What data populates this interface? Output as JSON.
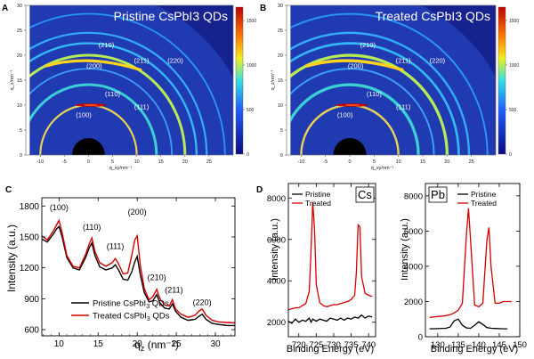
{
  "panels": {
    "A": "A",
    "B": "B",
    "C": "C",
    "D": "D"
  },
  "colors": {
    "pristine": "#000000",
    "treated": "#d40000",
    "map_bg": "#16238f"
  },
  "chart_data": [
    {
      "id": "A",
      "type": "heatmap",
      "title": "Pristine CsPbI3 QDs",
      "xlabel": "q_xy/nm⁻¹",
      "ylabel": "q_z/nm⁻¹",
      "xlim": [
        -13,
        30
      ],
      "ylim": [
        0,
        30
      ],
      "xticks": [
        "-10",
        "-5",
        "0",
        "5",
        "10",
        "15",
        "20",
        "25"
      ],
      "yticks": [
        "0",
        "5",
        "10",
        "15",
        "20",
        "25",
        "30"
      ],
      "rings": [
        {
          "label": "(100)",
          "q": 10.0
        },
        {
          "label": "(110)",
          "q": 14.1
        },
        {
          "label": "(111)",
          "q": 17.3
        },
        {
          "label": "(200)",
          "q": 20.0
        },
        {
          "label": "(210)",
          "q": 22.4
        },
        {
          "label": "(211)",
          "q": 24.5
        },
        {
          "label": "(220)",
          "q": 28.3
        }
      ],
      "colorbar": {
        "ticks": [
          "1500",
          "1000",
          "500",
          "0"
        ],
        "max": 1650
      }
    },
    {
      "id": "B",
      "type": "heatmap",
      "title": "Treated CsPbI3 QDs",
      "xlabel": "q_xy/nm⁻¹",
      "ylabel": "q_z/nm⁻¹",
      "xlim": [
        -13,
        30
      ],
      "ylim": [
        0,
        30
      ],
      "xticks": [
        "-10",
        "-5",
        "0",
        "5",
        "10",
        "15",
        "20",
        "25"
      ],
      "yticks": [
        "0",
        "5",
        "10",
        "15",
        "20",
        "25",
        "30"
      ],
      "rings": [
        {
          "label": "(100)",
          "q": 10.0
        },
        {
          "label": "(110)",
          "q": 14.1
        },
        {
          "label": "(111)",
          "q": 17.3
        },
        {
          "label": "(200)",
          "q": 20.0
        },
        {
          "label": "(210)",
          "q": 22.4
        },
        {
          "label": "(211)",
          "q": 24.5
        },
        {
          "label": "(220)",
          "q": 28.3
        }
      ],
      "colorbar": {
        "ticks": [
          "1500",
          "1000",
          "500",
          "0"
        ],
        "max": 1650
      }
    },
    {
      "id": "C",
      "type": "line",
      "xlabel": "q",
      "xlabel_sub": "z",
      "xlabel_unit": " (nm⁻¹)",
      "ylabel": "Intensity (a.u.)",
      "xlim": [
        7.8,
        32.5
      ],
      "ylim": [
        540,
        1880
      ],
      "xticks": [
        10,
        15,
        20,
        25,
        30
      ],
      "yticks": [
        600,
        900,
        1200,
        1500,
        1800
      ],
      "peak_labels": [
        {
          "label": "(100)",
          "x": 10.0,
          "y": 1760
        },
        {
          "label": "(110)",
          "x": 14.2,
          "y": 1570
        },
        {
          "label": "(111)",
          "x": 17.2,
          "y": 1385
        },
        {
          "label": "(200)",
          "x": 20.0,
          "y": 1715
        },
        {
          "label": "(210)",
          "x": 22.5,
          "y": 1080
        },
        {
          "label": "(211)",
          "x": 24.7,
          "y": 960
        },
        {
          "label": "(220)",
          "x": 28.3,
          "y": 840
        }
      ],
      "series": [
        {
          "name": "Pristine CsPbI",
          "name_sub": "3",
          "name_tail": " QDs",
          "color": "#000000",
          "x": [
            7.8,
            8.5,
            9.3,
            9.7,
            10.0,
            10.4,
            11.0,
            11.8,
            12.6,
            13.4,
            13.9,
            14.2,
            14.6,
            15.2,
            16.0,
            16.8,
            17.2,
            17.6,
            18.2,
            18.8,
            19.3,
            19.7,
            20.0,
            20.4,
            20.9,
            21.5,
            22.0,
            22.5,
            22.9,
            23.5,
            24.1,
            24.5,
            24.9,
            25.6,
            26.5,
            27.4,
            27.9,
            28.3,
            28.8,
            29.6,
            30.5,
            31.5,
            32.5
          ],
          "y": [
            1480,
            1450,
            1530,
            1580,
            1600,
            1500,
            1300,
            1200,
            1180,
            1300,
            1400,
            1440,
            1320,
            1210,
            1180,
            1200,
            1230,
            1180,
            1090,
            1080,
            1160,
            1260,
            1310,
            1130,
            960,
            870,
            880,
            940,
            860,
            810,
            800,
            850,
            780,
            720,
            690,
            700,
            730,
            750,
            700,
            660,
            650,
            640,
            640
          ]
        },
        {
          "name": "Treated CsPbI",
          "name_sub": "3",
          "name_tail": " QDs",
          "color": "#d40000",
          "x": [
            7.8,
            8.5,
            9.3,
            9.7,
            10.0,
            10.4,
            11.0,
            11.8,
            12.6,
            13.4,
            13.9,
            14.2,
            14.6,
            15.2,
            16.0,
            16.8,
            17.2,
            17.6,
            18.2,
            18.8,
            19.3,
            19.7,
            20.0,
            20.4,
            20.9,
            21.5,
            22.0,
            22.5,
            22.9,
            23.5,
            24.1,
            24.5,
            24.9,
            25.6,
            26.5,
            27.4,
            27.9,
            28.3,
            28.8,
            29.6,
            30.5,
            31.5,
            32.5
          ],
          "y": [
            1510,
            1470,
            1560,
            1620,
            1660,
            1540,
            1320,
            1215,
            1200,
            1330,
            1440,
            1490,
            1360,
            1250,
            1215,
            1250,
            1290,
            1240,
            1140,
            1150,
            1320,
            1470,
            1510,
            1220,
            1000,
            890,
            920,
            990,
            900,
            840,
            830,
            890,
            800,
            750,
            720,
            740,
            780,
            800,
            740,
            690,
            675,
            670,
            665
          ]
        }
      ]
    },
    {
      "id": "D-Cs",
      "type": "line",
      "element": "Cs",
      "xlabel": "Binding Energy (eV)",
      "ylabel": "Intensity (a.u.)",
      "xlim": [
        717,
        742
      ],
      "ylim": [
        1300,
        8700
      ],
      "xticks": [
        720,
        725,
        730,
        735,
        740
      ],
      "yticks": [
        2000,
        4000,
        6000,
        8000
      ],
      "legend": [
        "Pristine",
        "Treated"
      ],
      "series": [
        {
          "name": "Pristine",
          "color": "#000000",
          "x": [
            717,
            718,
            719,
            720,
            721,
            722,
            723,
            723.5,
            724,
            725,
            726,
            727,
            728,
            729,
            730,
            731,
            732,
            733,
            734,
            735,
            736,
            737,
            738,
            739,
            740,
            741
          ],
          "y": [
            2050,
            1950,
            2150,
            2000,
            2100,
            2050,
            2200,
            2000,
            2150,
            2050,
            2150,
            2100,
            2050,
            2200,
            2150,
            2100,
            2200,
            2100,
            2200,
            2150,
            2250,
            2200,
            2350,
            2200,
            2300,
            2250
          ]
        },
        {
          "name": "Treated",
          "color": "#d40000",
          "x": [
            717,
            718,
            719,
            720,
            721,
            722,
            723,
            723.5,
            724,
            724.5,
            725,
            726,
            727,
            728,
            729,
            730,
            731,
            732,
            733,
            734,
            735,
            736,
            736.5,
            737,
            737.5,
            738,
            739,
            740,
            741
          ],
          "y": [
            2600,
            2650,
            2700,
            2700,
            2800,
            2900,
            3500,
            5500,
            7800,
            6500,
            3800,
            2950,
            2800,
            2750,
            2800,
            2850,
            2850,
            2900,
            2950,
            3000,
            3100,
            3300,
            4400,
            6700,
            6600,
            4200,
            3400,
            3300,
            3250
          ]
        }
      ]
    },
    {
      "id": "D-Pb",
      "type": "line",
      "element": "Pb",
      "xlabel": "Binding Energy (eV)",
      "ylabel": "",
      "xlim": [
        127,
        150
      ],
      "ylim": [
        0,
        8700
      ],
      "xticks": [
        130,
        135,
        140,
        145,
        150
      ],
      "yticks": [
        0,
        2000,
        4000,
        6000,
        8000
      ],
      "legend": [
        "Pristine",
        "Treated"
      ],
      "series": [
        {
          "name": "Pristine",
          "color": "#000000",
          "x": [
            128,
            130,
            132,
            133,
            134,
            135,
            136,
            137,
            138,
            139,
            140,
            141,
            142,
            143,
            144,
            145,
            146,
            147
          ],
          "y": [
            450,
            460,
            480,
            550,
            900,
            1000,
            650,
            500,
            480,
            650,
            850,
            700,
            520,
            480,
            470,
            460,
            450,
            450
          ]
        },
        {
          "name": "Treated",
          "color": "#d40000",
          "x": [
            128,
            130,
            132,
            133,
            134,
            135,
            136,
            137,
            137.5,
            138,
            139,
            140,
            141,
            142,
            142.5,
            143,
            144,
            145,
            146,
            147,
            148
          ],
          "y": [
            1100,
            1150,
            1200,
            1250,
            1350,
            1500,
            1900,
            5800,
            7300,
            5500,
            1800,
            1700,
            1900,
            5500,
            6200,
            4000,
            1900,
            1900,
            2000,
            2000,
            2000
          ]
        }
      ]
    }
  ]
}
